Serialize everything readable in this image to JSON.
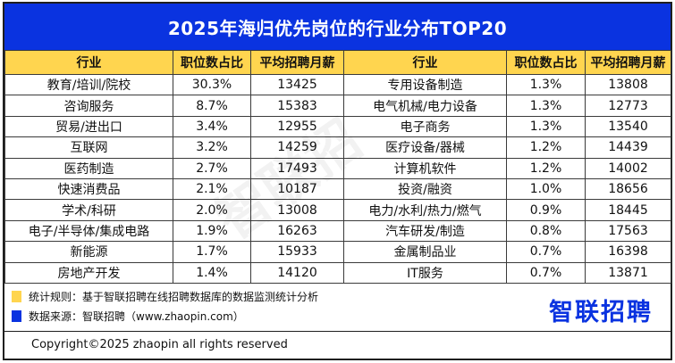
{
  "title": "2025年海归优先岗位的行业分布TOP20",
  "columns": [
    "行业",
    "职位数占比",
    "平均招聘月薪",
    "行业",
    "职位数占比",
    "平均招聘月薪"
  ],
  "left_rows": [
    {
      "industry": "教育/培训/院校",
      "share": "30.3%",
      "salary": "13425"
    },
    {
      "industry": "咨询服务",
      "share": "8.7%",
      "salary": "15383"
    },
    {
      "industry": "贸易/进出口",
      "share": "3.4%",
      "salary": "12955"
    },
    {
      "industry": "互联网",
      "share": "3.2%",
      "salary": "14259"
    },
    {
      "industry": "医药制造",
      "share": "2.7%",
      "salary": "17493"
    },
    {
      "industry": "快速消费品",
      "share": "2.1%",
      "salary": "10187"
    },
    {
      "industry": "学术/科研",
      "share": "2.0%",
      "salary": "13008"
    },
    {
      "industry": "电子/半导体/集成电路",
      "share": "1.9%",
      "salary": "16263"
    },
    {
      "industry": "新能源",
      "share": "1.7%",
      "salary": "15933"
    },
    {
      "industry": "房地产开发",
      "share": "1.4%",
      "salary": "14120"
    }
  ],
  "right_rows": [
    {
      "industry": "专用设备制造",
      "share": "1.3%",
      "salary": "13808"
    },
    {
      "industry": "电气机械/电力设备",
      "share": "1.3%",
      "salary": "12773"
    },
    {
      "industry": "电子商务",
      "share": "1.3%",
      "salary": "13540"
    },
    {
      "industry": "医疗设备/器械",
      "share": "1.2%",
      "salary": "14439"
    },
    {
      "industry": "计算机软件",
      "share": "1.2%",
      "salary": "14002"
    },
    {
      "industry": "投资/融资",
      "share": "1.0%",
      "salary": "18656"
    },
    {
      "industry": "电力/水利/热力/燃气",
      "share": "0.9%",
      "salary": "18445"
    },
    {
      "industry": "汽车研发/制造",
      "share": "0.8%",
      "salary": "17563"
    },
    {
      "industry": "金属制品业",
      "share": "0.7%",
      "salary": "16398"
    },
    {
      "industry": "IT服务",
      "share": "0.7%",
      "salary": "13871"
    }
  ],
  "notes": {
    "rule": "统计规则：基于智联招聘在线招聘数据库的数据监测统计分析",
    "source": "数据来源：智联招聘（www.zhaopin.com）"
  },
  "logo": "智联招聘",
  "watermark": "智联招",
  "copyright": "Copyright©2025 zhaopin all rights reserved",
  "colors": {
    "header_blue": "#0a33e0",
    "header_yellow": "#ffd54f"
  }
}
